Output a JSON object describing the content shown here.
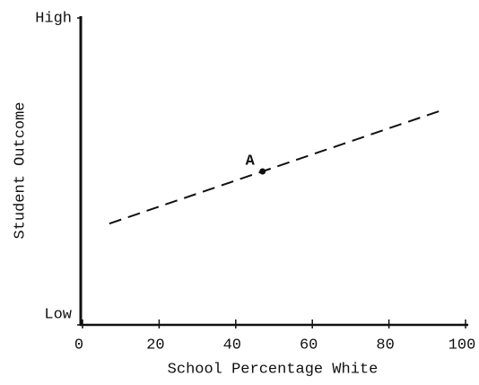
{
  "chart_data": {
    "type": "line",
    "xlabel": "School Percentage White",
    "ylabel": "Student Outcome",
    "xlim": [
      0,
      100
    ],
    "xticks": [
      0,
      20,
      40,
      60,
      80,
      100
    ],
    "ylim": [
      0,
      1
    ],
    "yticks": [
      {
        "value": 0,
        "label": "Low"
      },
      {
        "value": 1,
        "label": "High"
      }
    ],
    "x": [
      7,
      94
    ],
    "series": [
      {
        "color": "#111111",
        "dashed": true,
        "values": [
          0.33,
          0.7
        ]
      }
    ],
    "annotations": [
      {
        "text": "A",
        "x": 47,
        "y": 0.5
      }
    ]
  }
}
